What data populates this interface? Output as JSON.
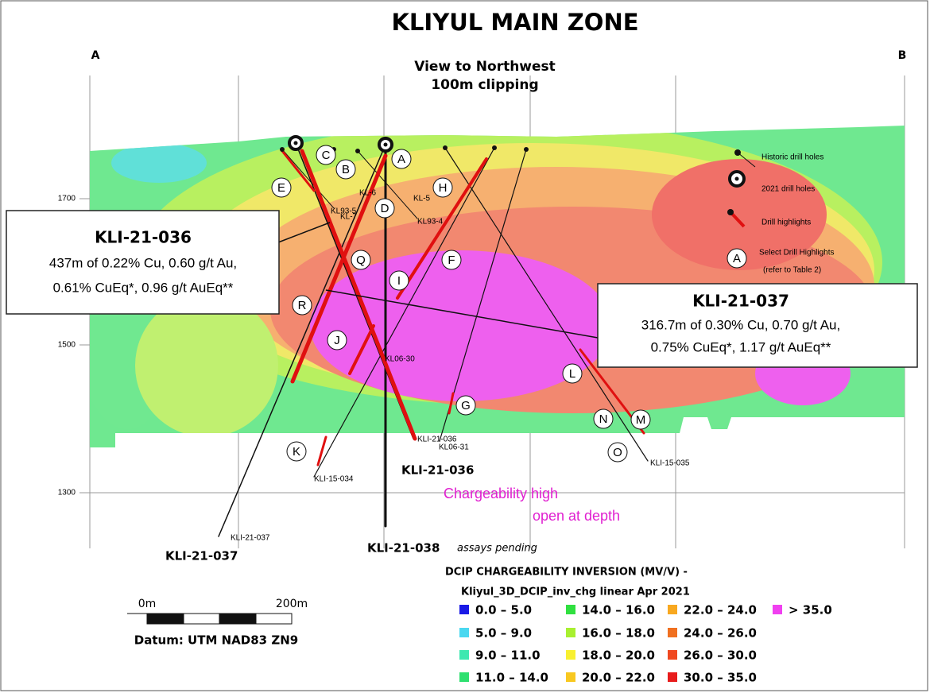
{
  "title": "KLIYUL MAIN ZONE",
  "section_ends": [
    "A",
    "B"
  ],
  "view": [
    "View to Northwest",
    "100m clipping"
  ],
  "elevations": [
    1700,
    1500,
    1300
  ],
  "callouts": [
    {
      "hole": "KLI-21-036",
      "lines": [
        "437m of 0.22% Cu, 0.60 g/t Au,",
        "0.61% CuEq*, 0.96 g/t AuEq**"
      ]
    },
    {
      "hole": "KLI-21-037",
      "lines": [
        "316.7m of 0.30% Cu, 0.70 g/t Au,",
        "0.75% CuEq*, 1.17 g/t AuEq**"
      ]
    }
  ],
  "highlights": [
    "A",
    "B",
    "C",
    "D",
    "E",
    "F",
    "G",
    "H",
    "I",
    "J",
    "K",
    "L",
    "M",
    "N",
    "O",
    "Q",
    "R"
  ],
  "hole_labels": [
    "KL-6",
    "KL-5",
    "KL93-5",
    "KL-7",
    "KL93-4",
    "KL06-30",
    "KLI-21-036",
    "KL06-31",
    "KLI-15-034",
    "KLI-15-035",
    "KLI-21-037"
  ],
  "hole_names": [
    "KLI-21-036",
    "KLI-21-037",
    "KLI-21-038"
  ],
  "pending": "assays pending",
  "annotation": [
    "Chargeability high",
    "open at depth"
  ],
  "legend": {
    "items": [
      "Historic drill holes",
      "2021 drill holes",
      "Drill highlights"
    ],
    "select_symbol": "A",
    "select_text": [
      "Select Drill Highlights",
      "(refer to Table 2)"
    ]
  },
  "colorbar": {
    "title": "DCIP CHARGEABILITY INVERSION (MV/V) -",
    "subtitle": "Kliyul_3D_DCIP_inv_chg linear Apr 2021",
    "classes": [
      {
        "label": "0.0 – 5.0",
        "color": "#1a1ae6"
      },
      {
        "label": "5.0 – 9.0",
        "color": "#4ad8f0"
      },
      {
        "label": "9.0 – 11.0",
        "color": "#3ee8b0"
      },
      {
        "label": "11.0 – 14.0",
        "color": "#2ee070"
      },
      {
        "label": "14.0 – 16.0",
        "color": "#30e040"
      },
      {
        "label": "16.0 – 18.0",
        "color": "#a8f030"
      },
      {
        "label": "18.0 – 20.0",
        "color": "#f8f030"
      },
      {
        "label": "20.0 – 22.0",
        "color": "#f8c820"
      },
      {
        "label": "22.0 – 24.0",
        "color": "#f8a820"
      },
      {
        "label": "24.0 – 26.0",
        "color": "#f07020"
      },
      {
        "label": "26.0 – 30.0",
        "color": "#f04820"
      },
      {
        "label": "30.0 – 35.0",
        "color": "#e81c1c"
      },
      {
        "label": "> 35.0",
        "color": "#f040f0"
      }
    ]
  },
  "scale": {
    "ticks": [
      "0m",
      "200m"
    ],
    "datum": "Datum: UTM NAD83 ZN9"
  }
}
